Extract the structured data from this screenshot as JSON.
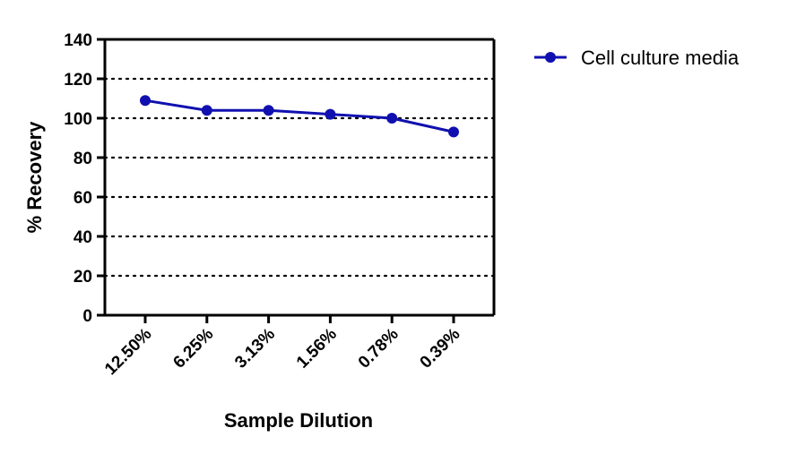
{
  "chart_data": {
    "type": "line",
    "title": "",
    "xlabel": "Sample Dilution",
    "ylabel": "% Recovery",
    "categories": [
      "12.50%",
      "6.25%",
      "3.13%",
      "1.56%",
      "0.78%",
      "0.39%"
    ],
    "series": [
      {
        "name": "Cell culture media",
        "values": [
          109,
          104,
          104,
          102,
          100,
          93
        ]
      }
    ],
    "ylim": [
      0,
      140
    ],
    "yticks": [
      0,
      20,
      40,
      60,
      80,
      100,
      120,
      140
    ],
    "grid": "horizontal dotted",
    "legend": "top-right",
    "colors": {
      "series": "#1010b0",
      "axis": "#000000",
      "grid": "#000000"
    }
  }
}
